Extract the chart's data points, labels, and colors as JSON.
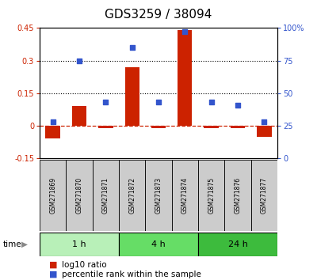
{
  "title": "GDS3259 / 38094",
  "samples": [
    "GSM271869",
    "GSM271870",
    "GSM271871",
    "GSM271872",
    "GSM271873",
    "GSM271874",
    "GSM271875",
    "GSM271876",
    "GSM271877"
  ],
  "log10_ratio": [
    -0.06,
    0.09,
    -0.01,
    0.27,
    -0.01,
    0.44,
    -0.01,
    -0.01,
    -0.05
  ],
  "percentile_rank": [
    28,
    75,
    43,
    85,
    43,
    97,
    43,
    41,
    28
  ],
  "ylim_left": [
    -0.15,
    0.45
  ],
  "ylim_right": [
    0,
    100
  ],
  "yticks_left": [
    -0.15,
    0.0,
    0.15,
    0.3,
    0.45
  ],
  "yticks_right": [
    0,
    25,
    50,
    75,
    100
  ],
  "groups": [
    {
      "label": "1 h",
      "start": 0,
      "end": 3,
      "color": "#b8f0b8"
    },
    {
      "label": "4 h",
      "start": 3,
      "end": 6,
      "color": "#66dd66"
    },
    {
      "label": "24 h",
      "start": 6,
      "end": 9,
      "color": "#3dbb3d"
    }
  ],
  "bar_color": "#cc2200",
  "dot_color": "#3355cc",
  "dashed_color": "#cc2200",
  "bg_color": "#ffffff",
  "label_color_left": "#cc2200",
  "label_color_right": "#3355cc",
  "sample_box_color": "#cccccc",
  "title_fontsize": 11,
  "tick_fontsize": 7,
  "legend_fontsize": 7.5,
  "sample_fontsize": 5.5,
  "time_fontsize": 8
}
